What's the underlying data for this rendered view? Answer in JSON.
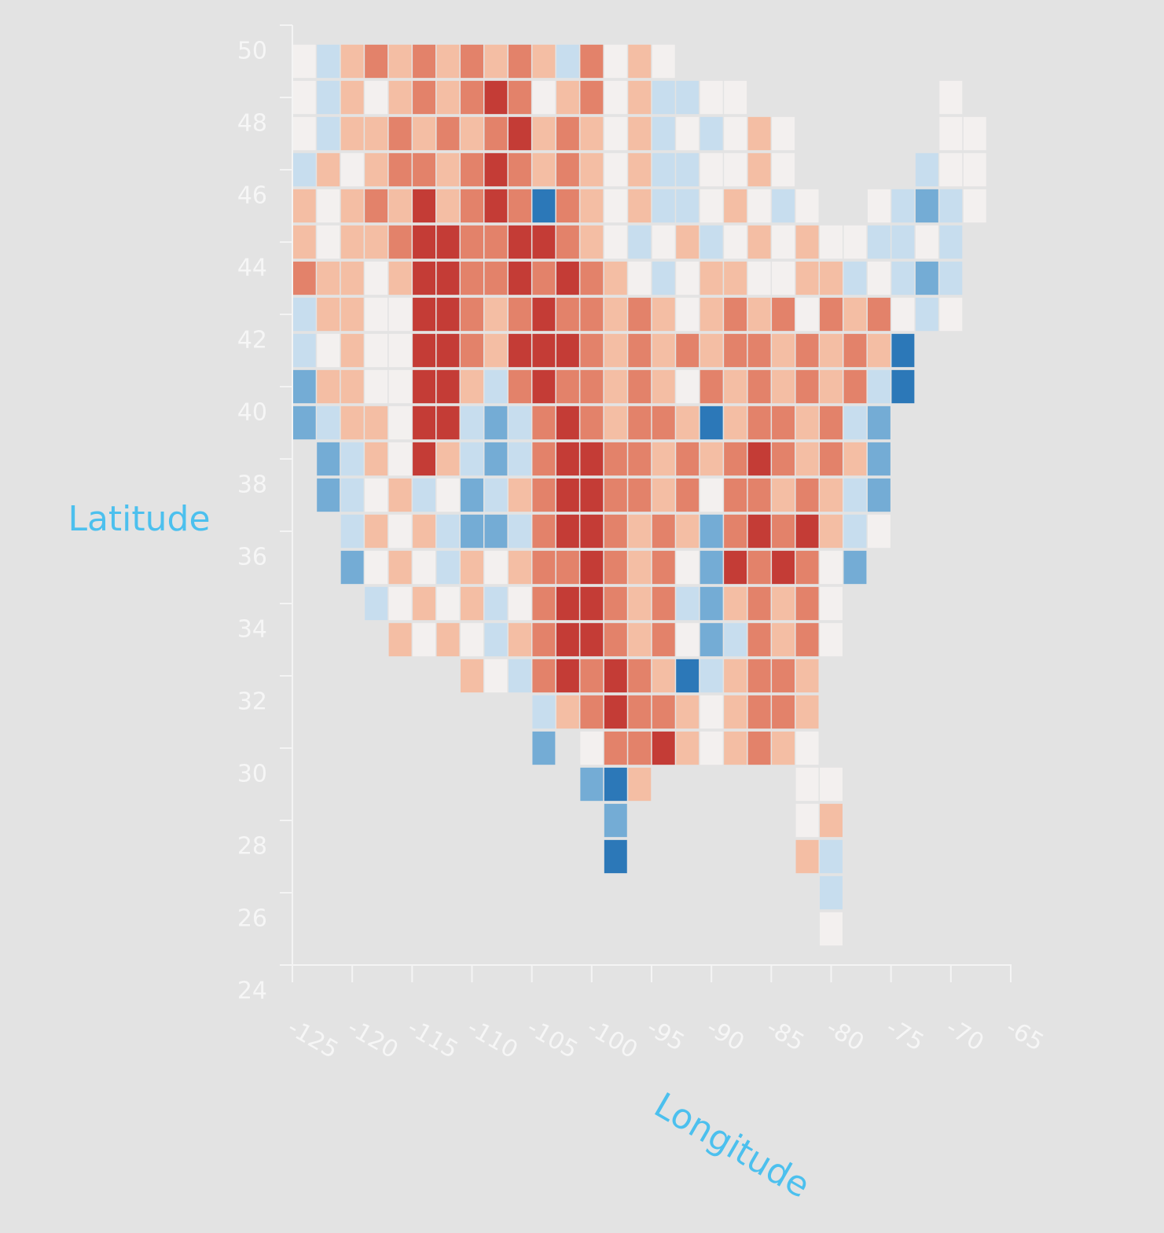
{
  "chart_data": {
    "type": "scatter",
    "x_label": "Longitude",
    "y_label": "Latitude",
    "xlim": [
      -125,
      -65
    ],
    "xticks": [
      -125,
      -120,
      -115,
      -110,
      -105,
      -100,
      -95,
      -90,
      -85,
      -80,
      -75,
      -70,
      -65
    ],
    "ylim": [
      24,
      50
    ],
    "yticks": [
      50,
      48,
      46,
      44,
      42,
      40,
      38,
      36,
      34,
      32,
      30,
      28,
      26,
      24
    ],
    "series": [
      {
        "color": "#c43c36",
        "x": [
          -108,
          -106,
          -108,
          -114,
          -108,
          -114,
          -112,
          -106,
          -104,
          -114,
          -112,
          -106,
          -102,
          -114,
          -112,
          -104,
          -114,
          -112,
          -106,
          -104,
          -102,
          -114,
          -112,
          -104,
          -114,
          -112,
          -102,
          -114,
          -102,
          -100,
          -86,
          -102,
          -100,
          -102,
          -100,
          -86,
          -82,
          -100,
          -88,
          -84,
          -102,
          -100,
          -102,
          -100,
          -102,
          -98,
          -98,
          -94
        ],
        "values": [
          48,
          47,
          46,
          45,
          45,
          44,
          44,
          44,
          44,
          43,
          43,
          43,
          43,
          42,
          42,
          42,
          41,
          41,
          41,
          41,
          41,
          40,
          40,
          40,
          39,
          39,
          39,
          38,
          38,
          38,
          38,
          37,
          37,
          36,
          36,
          36,
          36,
          35,
          35,
          35,
          34,
          34,
          33,
          33,
          32,
          32,
          31,
          30
        ]
      },
      {
        "color": "#e3826a",
        "x": [
          -118,
          -114,
          -110,
          -106,
          -100,
          -114,
          -110,
          -106,
          -100,
          -116,
          -112,
          -108,
          -102,
          -116,
          -114,
          -110,
          -106,
          -102,
          -118,
          -110,
          -106,
          -102,
          -116,
          -110,
          -108,
          -102,
          -124,
          -110,
          -108,
          -104,
          -100,
          -110,
          -106,
          -102,
          -100,
          -96,
          -88,
          -84,
          -80,
          -76,
          -110,
          -100,
          -96,
          -92,
          -88,
          -86,
          -82,
          -78,
          -106,
          -102,
          -100,
          -96,
          -90,
          -86,
          -82,
          -78,
          -104,
          -100,
          -96,
          -94,
          -86,
          -84,
          -80,
          -104,
          -98,
          -96,
          -92,
          -88,
          -84,
          -80,
          -104,
          -98,
          -96,
          -92,
          -88,
          -86,
          -82,
          -104,
          -98,
          -94,
          -88,
          -84,
          -104,
          -102,
          -98,
          -94,
          -86,
          -82,
          -104,
          -98,
          -94,
          -86,
          -82,
          -104,
          -98,
          -94,
          -86,
          -82,
          -104,
          -100,
          -96,
          -86,
          -84,
          -100,
          -96,
          -94,
          -86,
          -84,
          -98,
          -96,
          -86
        ],
        "values": [
          49,
          49,
          49,
          49,
          49,
          48,
          48,
          48,
          48,
          47,
          47,
          47,
          47,
          46,
          46,
          46,
          46,
          46,
          45,
          45,
          45,
          45,
          44,
          44,
          44,
          44,
          43,
          43,
          43,
          43,
          43,
          42,
          42,
          42,
          42,
          42,
          42,
          42,
          42,
          42,
          41,
          41,
          41,
          41,
          41,
          41,
          41,
          41,
          40,
          40,
          40,
          40,
          40,
          40,
          40,
          40,
          39,
          39,
          39,
          39,
          39,
          39,
          39,
          38,
          38,
          38,
          38,
          38,
          38,
          38,
          37,
          37,
          37,
          37,
          37,
          37,
          37,
          36,
          36,
          36,
          36,
          36,
          35,
          35,
          35,
          35,
          35,
          35,
          34,
          34,
          34,
          34,
          34,
          33,
          33,
          33,
          33,
          33,
          32,
          32,
          32,
          32,
          32,
          31,
          31,
          31,
          31,
          31,
          30,
          30,
          30
        ]
      },
      {
        "color": "#f4bea4",
        "x": [
          -120,
          -116,
          -112,
          -108,
          -104,
          -96,
          -120,
          -116,
          -112,
          -102,
          -96,
          -120,
          -118,
          -114,
          -110,
          -104,
          -100,
          -96,
          -86,
          -122,
          -118,
          -112,
          -104,
          -100,
          -96,
          -86,
          -124,
          -120,
          -116,
          -112,
          -100,
          -96,
          -88,
          -124,
          -120,
          -118,
          -100,
          -92,
          -86,
          -82,
          -122,
          -120,
          -116,
          -98,
          -90,
          -88,
          -82,
          -80,
          -122,
          -120,
          -108,
          -98,
          -94,
          -90,
          -86,
          -78,
          -120,
          -108,
          -98,
          -94,
          -90,
          -84,
          -80,
          -76,
          -122,
          -120,
          -110,
          -98,
          -94,
          -88,
          -84,
          -80,
          -120,
          -118,
          -98,
          -92,
          -88,
          -82,
          -118,
          -112,
          -94,
          -90,
          -82,
          -78,
          -116,
          -106,
          -94,
          -84,
          -80,
          -118,
          -114,
          -96,
          -92,
          -80,
          -116,
          -110,
          -106,
          -96,
          -114,
          -110,
          -96,
          -88,
          -84,
          -116,
          -112,
          -106,
          -96,
          -84,
          -110,
          -94,
          -88,
          -82,
          -102,
          -92,
          -88,
          -82,
          -92,
          -88,
          -84,
          -96,
          -80,
          -82
        ],
        "values": [
          49,
          49,
          49,
          49,
          49,
          49,
          48,
          48,
          48,
          48,
          48,
          47,
          47,
          47,
          47,
          47,
          47,
          47,
          47,
          46,
          46,
          46,
          46,
          46,
          46,
          46,
          45,
          45,
          45,
          45,
          45,
          45,
          45,
          44,
          44,
          44,
          44,
          44,
          44,
          44,
          43,
          43,
          43,
          43,
          43,
          43,
          43,
          43,
          42,
          42,
          42,
          42,
          42,
          42,
          42,
          42,
          41,
          41,
          41,
          41,
          41,
          41,
          41,
          41,
          40,
          40,
          40,
          40,
          40,
          40,
          40,
          40,
          39,
          39,
          39,
          39,
          39,
          39,
          38,
          38,
          38,
          38,
          38,
          38,
          37,
          37,
          37,
          37,
          37,
          36,
          36,
          36,
          36,
          36,
          35,
          35,
          35,
          35,
          34,
          34,
          34,
          34,
          34,
          33,
          33,
          33,
          33,
          33,
          32,
          32,
          32,
          32,
          31,
          31,
          31,
          31,
          30,
          30,
          30,
          29,
          28,
          27
        ]
      },
      {
        "color": "#f3f0ef",
        "x": [
          -124,
          -98,
          -94,
          -124,
          -118,
          -104,
          -98,
          -90,
          -88,
          -70,
          -124,
          -98,
          -92,
          -88,
          -84,
          -70,
          -68,
          -120,
          -98,
          -90,
          -88,
          -84,
          -70,
          -68,
          -122,
          -98,
          -90,
          -86,
          -82,
          -76,
          -68,
          -122,
          -98,
          -94,
          -88,
          -84,
          -80,
          -78,
          -72,
          -118,
          -96,
          -92,
          -86,
          -84,
          -76,
          -118,
          -116,
          -92,
          -82,
          -74,
          -70,
          -122,
          -118,
          -116,
          -118,
          -116,
          -92,
          -116,
          -116,
          -118,
          -112,
          -90,
          -116,
          -76,
          -118,
          -114,
          -108,
          -92,
          -80,
          -116,
          -112,
          -106,
          -80,
          -114,
          -110,
          -92,
          -80,
          -108,
          -90,
          -100,
          -90,
          -82,
          -82,
          -80,
          -82,
          -80
        ],
        "values": [
          49,
          49,
          49,
          48,
          48,
          48,
          48,
          48,
          48,
          48,
          47,
          47,
          47,
          47,
          47,
          47,
          47,
          46,
          46,
          46,
          46,
          46,
          46,
          46,
          45,
          45,
          45,
          45,
          45,
          45,
          45,
          44,
          44,
          44,
          44,
          44,
          44,
          44,
          44,
          43,
          43,
          43,
          43,
          43,
          43,
          42,
          42,
          42,
          42,
          42,
          42,
          41,
          41,
          41,
          40,
          40,
          40,
          39,
          38,
          37,
          37,
          37,
          36,
          36,
          35,
          35,
          35,
          35,
          35,
          34,
          34,
          34,
          34,
          33,
          33,
          33,
          33,
          32,
          31,
          30,
          30,
          30,
          29,
          29,
          28,
          25
        ]
      },
      {
        "color": "#c7ddee",
        "x": [
          -122,
          -102,
          -122,
          -94,
          -92,
          -122,
          -94,
          -90,
          -124,
          -94,
          -92,
          -72,
          -94,
          -92,
          -84,
          -74,
          -70,
          -96,
          -90,
          -76,
          -74,
          -70,
          -94,
          -78,
          -74,
          -70,
          -124,
          -72,
          -124,
          -108,
          -76,
          -122,
          -110,
          -106,
          -78,
          -120,
          -110,
          -106,
          -120,
          -114,
          -108,
          -78,
          -120,
          -112,
          -106,
          -78,
          -112,
          -118,
          -108,
          -92,
          -108,
          -88,
          -106,
          -90,
          -104,
          -80,
          -80
        ],
        "values": [
          49,
          49,
          48,
          48,
          48,
          47,
          47,
          47,
          46,
          46,
          46,
          46,
          45,
          45,
          45,
          45,
          45,
          44,
          44,
          44,
          44,
          44,
          43,
          43,
          43,
          43,
          42,
          42,
          41,
          40,
          40,
          39,
          39,
          39,
          39,
          38,
          38,
          38,
          37,
          37,
          37,
          37,
          36,
          36,
          36,
          36,
          35,
          34,
          34,
          34,
          33,
          33,
          32,
          32,
          31,
          27,
          26
        ]
      },
      {
        "color": "#74acd5",
        "x": [
          -72,
          -72,
          -124,
          -124,
          -108,
          -76,
          -122,
          -108,
          -76,
          -122,
          -110,
          -76,
          -110,
          -108,
          -90,
          -120,
          -90,
          -78,
          -90,
          -90,
          -104,
          -100,
          -98
        ],
        "values": [
          45,
          43,
          40,
          39,
          39,
          39,
          38,
          38,
          38,
          37,
          37,
          37,
          36,
          36,
          36,
          35,
          35,
          35,
          34,
          33,
          30,
          29,
          28
        ]
      },
      {
        "color": "#2c78b8",
        "x": [
          -104,
          -74,
          -74,
          -90,
          -92,
          -98,
          -98
        ],
        "values": [
          45,
          41,
          40,
          39,
          32,
          29,
          27
        ]
      }
    ]
  }
}
